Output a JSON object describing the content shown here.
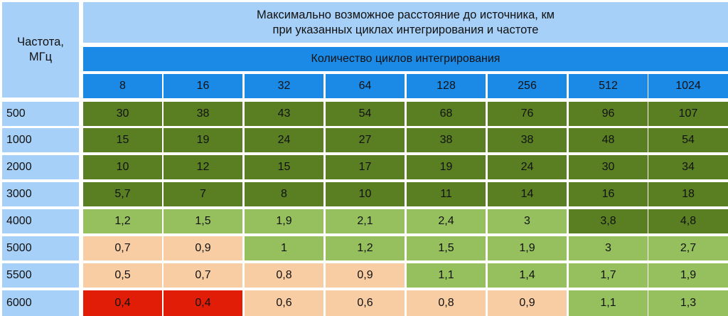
{
  "table": {
    "frequency_header": "Частота,\nМГц",
    "title": "Максимально возможное расстояние до источника, км\nпри указанных циклах интегрирования и частоте",
    "cycles_header": "Количество циклов интегрирования",
    "cycles": [
      "8",
      "16",
      "32",
      "64",
      "128",
      "256",
      "512",
      "1024"
    ],
    "rows": [
      {
        "freq": "500",
        "values": [
          "30",
          "38",
          "43",
          "54",
          "68",
          "76",
          "96",
          "107"
        ],
        "levels": [
          "dark",
          "dark",
          "dark",
          "dark",
          "dark",
          "dark",
          "dark",
          "dark"
        ]
      },
      {
        "freq": "1000",
        "values": [
          "15",
          "19",
          "24",
          "27",
          "38",
          "38",
          "48",
          "54"
        ],
        "levels": [
          "dark",
          "dark",
          "dark",
          "dark",
          "dark",
          "dark",
          "dark",
          "dark"
        ]
      },
      {
        "freq": "2000",
        "values": [
          "10",
          "12",
          "15",
          "17",
          "19",
          "24",
          "30",
          "34"
        ],
        "levels": [
          "dark",
          "dark",
          "dark",
          "dark",
          "dark",
          "dark",
          "dark",
          "dark"
        ]
      },
      {
        "freq": "3000",
        "values": [
          "5,7",
          "7",
          "8",
          "10",
          "11",
          "14",
          "16",
          "18"
        ],
        "levels": [
          "dark",
          "dark",
          "dark",
          "dark",
          "dark",
          "dark",
          "dark",
          "dark"
        ]
      },
      {
        "freq": "4000",
        "values": [
          "1,2",
          "1,5",
          "1,9",
          "2,1",
          "2,4",
          "3",
          "3,8",
          "4,8"
        ],
        "levels": [
          "light",
          "light",
          "light",
          "light",
          "light",
          "light",
          "dark",
          "dark"
        ]
      },
      {
        "freq": "5000",
        "values": [
          "0,7",
          "0,9",
          "1",
          "1,2",
          "1,5",
          "1,9",
          "3",
          "2,7"
        ],
        "levels": [
          "peach",
          "peach",
          "light",
          "light",
          "light",
          "light",
          "light",
          "light"
        ]
      },
      {
        "freq": "5500",
        "values": [
          "0,5",
          "0,7",
          "0,8",
          "0,9",
          "1,1",
          "1,4",
          "1,7",
          "1,9"
        ],
        "levels": [
          "peach",
          "peach",
          "peach",
          "peach",
          "light",
          "light",
          "light",
          "light"
        ]
      },
      {
        "freq": "6000",
        "values": [
          "0,4",
          "0,4",
          "0,6",
          "0,6",
          "0,8",
          "0,9",
          "1,1",
          "1,3"
        ],
        "levels": [
          "red",
          "red",
          "peach",
          "peach",
          "peach",
          "peach",
          "light",
          "light"
        ]
      }
    ]
  },
  "colors": {
    "header_light": "#a6d0f7",
    "header_blue": "#1a8ae6",
    "dark_green": "#5a7f23",
    "light_green": "#96c05e",
    "peach": "#f8cda3",
    "red": "#e11d08"
  }
}
